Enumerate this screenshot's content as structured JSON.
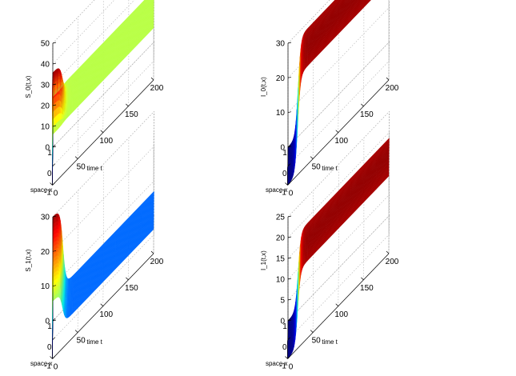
{
  "chart_data": [
    {
      "type": "surface",
      "zlabel": "S_0(t,x)",
      "xlabel": "space x",
      "ylabel": "time t",
      "x_range": [
        -1,
        1
      ],
      "t_range": [
        0,
        200
      ],
      "zlim": [
        0,
        50
      ],
      "z_ticks": [
        "0",
        "10",
        "20",
        "30",
        "40",
        "50"
      ],
      "x_ticks": [
        "1",
        "0",
        "-1"
      ],
      "t_ticks": [
        "0",
        "50",
        "100",
        "150",
        "200"
      ],
      "profile": {
        "initial_peak": 44,
        "plateau": 25,
        "transition_t": 20,
        "profile_shape": "bump"
      },
      "colormap": "jet",
      "grid": true
    },
    {
      "type": "surface",
      "zlabel": "I_0(t,x)",
      "xlabel": "space x",
      "ylabel": "time t",
      "x_range": [
        -1,
        1
      ],
      "t_range": [
        0,
        200
      ],
      "zlim": [
        0,
        30
      ],
      "z_ticks": [
        "0",
        "10",
        "20",
        "30"
      ],
      "x_ticks": [
        "1",
        "0",
        "-1"
      ],
      "t_ticks": [
        "0",
        "50",
        "100",
        "150",
        "200"
      ],
      "profile": {
        "initial_peak": 0,
        "plateau": 29,
        "transition_t": 20,
        "profile_shape": "flat"
      },
      "colormap": "jet",
      "grid": true
    },
    {
      "type": "surface",
      "zlabel": "S_1(t,x)",
      "xlabel": "space x",
      "ylabel": "time t",
      "x_range": [
        -1,
        1
      ],
      "t_range": [
        0,
        200
      ],
      "zlim": [
        0,
        30
      ],
      "z_ticks": [
        "0",
        "10",
        "20",
        "30"
      ],
      "x_ticks": [
        "1",
        "0",
        "-1"
      ],
      "t_ticks": [
        "0",
        "50",
        "100",
        "150",
        "200"
      ],
      "profile": {
        "initial_peak": 30,
        "plateau": 7,
        "transition_t": 20,
        "profile_shape": "ramp"
      },
      "colormap": "jet",
      "grid": true
    },
    {
      "type": "surface",
      "zlabel": "I_1(t,x)",
      "xlabel": "space x",
      "ylabel": "time t",
      "x_range": [
        -1,
        1
      ],
      "t_range": [
        0,
        200
      ],
      "zlim": [
        0,
        25
      ],
      "z_ticks": [
        "0",
        "5",
        "10",
        "15",
        "20",
        "25"
      ],
      "x_ticks": [
        "1",
        "0",
        "-1"
      ],
      "t_ticks": [
        "0",
        "50",
        "100",
        "150",
        "200"
      ],
      "profile": {
        "initial_peak": 0,
        "plateau": 19,
        "transition_t": 20,
        "profile_shape": "flat"
      },
      "colormap": "jet",
      "grid": true
    }
  ]
}
